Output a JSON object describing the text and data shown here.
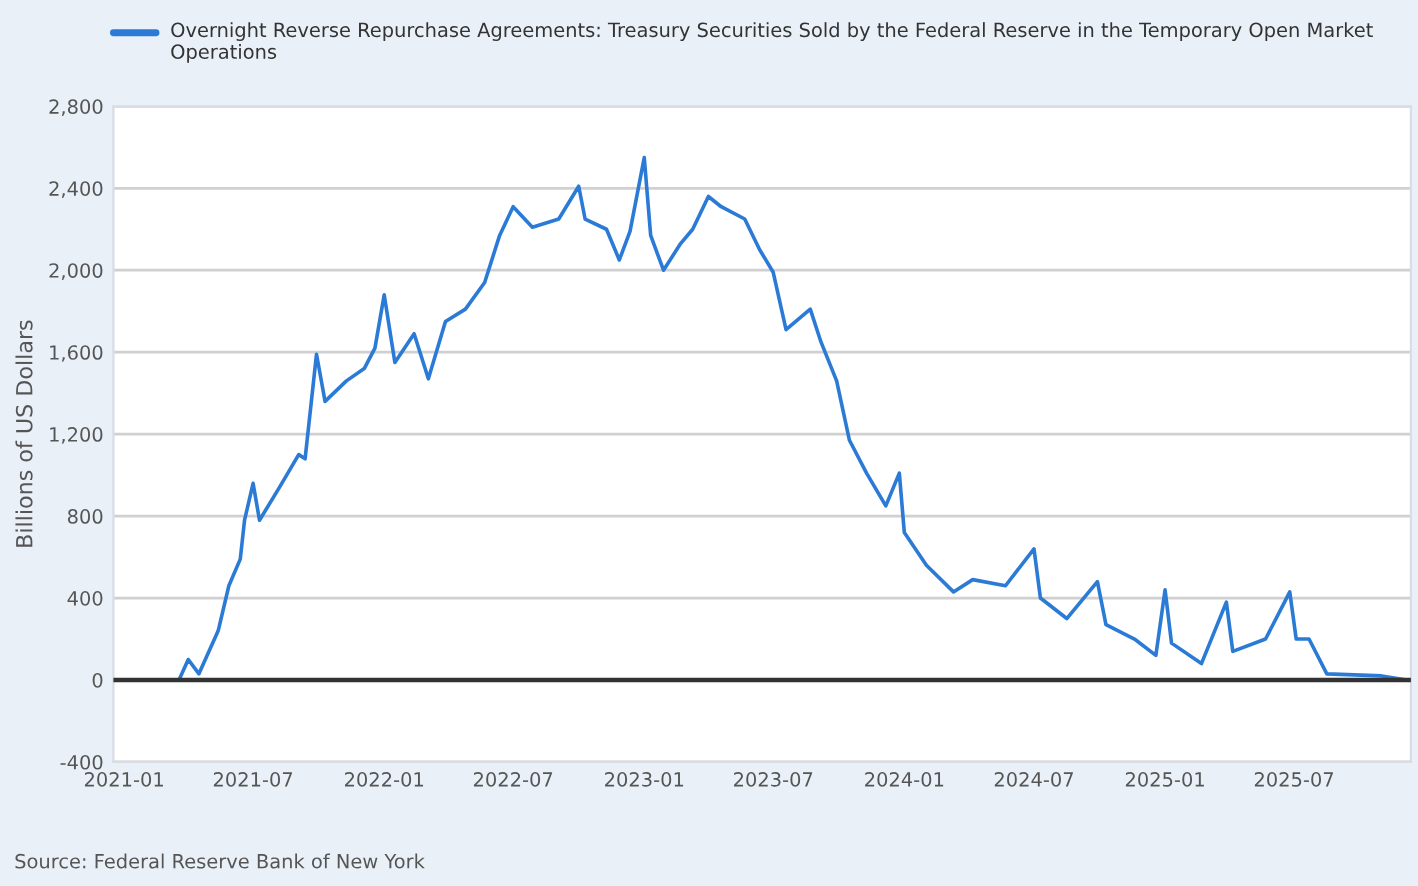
{
  "chart_data": {
    "type": "line",
    "ylabel": "Billions of US Dollars",
    "annotations": [
      "Source: Federal Reserve Bank of New York"
    ],
    "series": [
      {
        "name": "Overnight Reverse Repurchase Agreements: Treasury Securities Sold by the Federal Reserve in the Temporary Open Market Operations",
        "color": "#2b7bd6",
        "x": [
          "2021-01-01",
          "2021-03-19",
          "2021-04-01",
          "2021-04-16",
          "2021-05-13",
          "2021-05-28",
          "2021-06-13",
          "2021-06-19",
          "2021-07-01",
          "2021-07-10",
          "2021-08-07",
          "2021-09-03",
          "2021-09-12",
          "2021-09-28",
          "2021-10-10",
          "2021-11-09",
          "2021-12-04",
          "2021-12-19",
          "2022-01-01",
          "2022-01-16",
          "2022-02-12",
          "2022-03-04",
          "2022-03-28",
          "2022-04-25",
          "2022-05-22",
          "2022-06-12",
          "2022-07-01",
          "2022-07-28",
          "2022-09-03",
          "2022-10-01",
          "2022-10-10",
          "2022-11-09",
          "2022-11-27",
          "2022-12-12",
          "2023-01-01",
          "2023-01-10",
          "2023-01-28",
          "2023-02-21",
          "2023-03-10",
          "2023-04-01",
          "2023-04-19",
          "2023-05-22",
          "2023-06-12",
          "2023-07-01",
          "2023-07-19",
          "2023-08-22",
          "2023-09-06",
          "2023-09-28",
          "2023-10-16",
          "2023-11-09",
          "2023-12-06",
          "2023-12-25",
          "2024-01-01",
          "2024-02-01",
          "2024-03-10",
          "2024-04-06",
          "2024-05-22",
          "2024-07-01",
          "2024-07-10",
          "2024-08-16",
          "2024-09-28",
          "2024-10-10",
          "2024-11-19",
          "2024-12-19",
          "2025-01-01",
          "2025-01-10",
          "2025-02-21",
          "2025-03-28",
          "2025-04-06",
          "2025-05-22",
          "2025-06-25",
          "2025-07-04",
          "2025-07-22",
          "2025-08-16",
          "2025-11-01",
          "2025-12-06"
        ],
        "values": [
          0,
          0,
          100,
          30,
          240,
          460,
          590,
          780,
          960,
          780,
          940,
          1100,
          1080,
          1590,
          1360,
          1460,
          1520,
          1620,
          1880,
          1550,
          1690,
          1470,
          1750,
          1810,
          1940,
          2170,
          2310,
          2210,
          2250,
          2410,
          2250,
          2200,
          2050,
          2190,
          2550,
          2170,
          2000,
          2130,
          2200,
          2360,
          2310,
          2250,
          2100,
          1990,
          1710,
          1810,
          1650,
          1460,
          1170,
          1010,
          850,
          1010,
          720,
          560,
          430,
          490,
          460,
          640,
          400,
          300,
          480,
          270,
          200,
          120,
          440,
          180,
          80,
          380,
          140,
          200,
          430,
          200,
          200,
          30,
          20,
          0
        ]
      }
    ],
    "xlim": [
      "2020-12-17",
      "2025-12-12"
    ],
    "xticks": [
      {
        "value": "2021-01-01",
        "label": "2021-01"
      },
      {
        "value": "2021-07-01",
        "label": "2021-07"
      },
      {
        "value": "2022-01-01",
        "label": "2022-01"
      },
      {
        "value": "2022-07-01",
        "label": "2022-07"
      },
      {
        "value": "2023-01-01",
        "label": "2023-01"
      },
      {
        "value": "2023-07-01",
        "label": "2023-07"
      },
      {
        "value": "2024-01-01",
        "label": "2024-01"
      },
      {
        "value": "2024-07-01",
        "label": "2024-07"
      },
      {
        "value": "2025-01-01",
        "label": "2025-01"
      },
      {
        "value": "2025-07-01",
        "label": "2025-07"
      }
    ],
    "ylim": [
      -400,
      2800
    ],
    "yticks": [
      -400,
      0,
      400,
      800,
      {
        "value": 1200,
        "label": "1,200"
      },
      {
        "value": 1600,
        "label": "1,600"
      },
      {
        "value": 2000,
        "label": "2,000"
      },
      {
        "value": 2400,
        "label": "2,400"
      },
      {
        "value": 2800,
        "label": "2,800"
      }
    ],
    "ref_lines": [
      {
        "axis": "y",
        "value": 0,
        "color": "#333333"
      }
    ],
    "grid": "y",
    "legend": "top",
    "line_style": "solid",
    "marker": "none"
  }
}
